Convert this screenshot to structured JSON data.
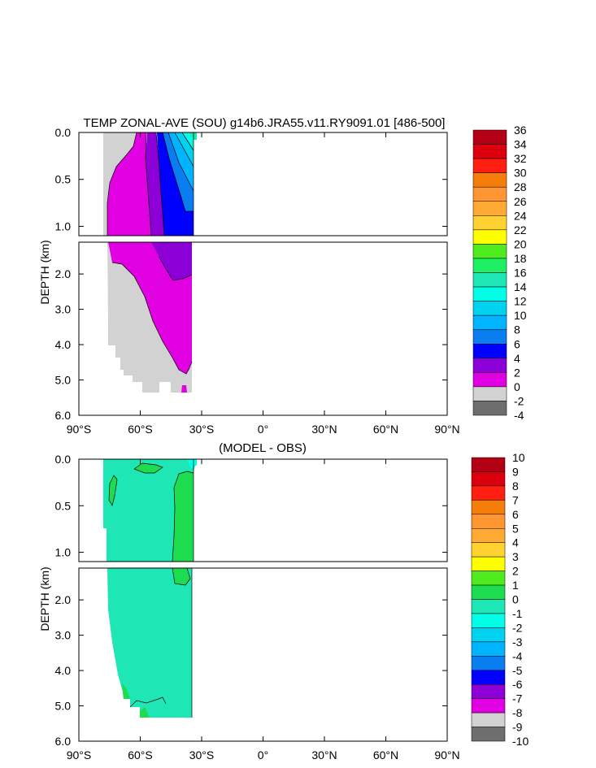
{
  "chart_data": [
    {
      "type": "heatmap",
      "title": "TEMP ZONAL-AVE (SOU) g14b6.JRA55.v11.RY9091.01 [486-500]",
      "ylabel": "DEPTH (km)",
      "x_ticks": [
        "90°S",
        "60°S",
        "30°S",
        "0°",
        "30°N",
        "60°N",
        "90°N"
      ],
      "y_ticks_upper": [
        "0.0",
        "0.5",
        "1.0"
      ],
      "y_ticks_lower": [
        "2.0",
        "3.0",
        "4.0",
        "5.0",
        "6.0"
      ],
      "xlim": [
        -90,
        90
      ],
      "ylim_upper": [
        0,
        1.1
      ],
      "ylim_lower": [
        1.1,
        6.0
      ],
      "colorbar_levels": [
        "36",
        "34",
        "32",
        "30",
        "28",
        "26",
        "24",
        "22",
        "20",
        "18",
        "16",
        "14",
        "12",
        "10",
        "8",
        "6",
        "4",
        "2",
        "0",
        "-2",
        "-4"
      ],
      "colorbar_colors": [
        "#b40014",
        "#dc000f",
        "#ff1e0f",
        "#f57d0a",
        "#ff9632",
        "#ffaa32",
        "#ffd232",
        "#ffff00",
        "#50eb1e",
        "#1ef064",
        "#1ee6b4",
        "#00ffe6",
        "#00d2f0",
        "#00b4ff",
        "#0a7df0",
        "#0000ff",
        "#8c00d7",
        "#e100e1",
        "#d2d2d2",
        "#6e6e6e"
      ]
    },
    {
      "type": "heatmap",
      "title": "(MODEL - OBS)",
      "ylabel": "DEPTH (km)",
      "x_ticks": [
        "90°S",
        "60°S",
        "30°S",
        "0°",
        "30°N",
        "60°N",
        "90°N"
      ],
      "y_ticks_upper": [
        "0.0",
        "0.5",
        "1.0"
      ],
      "y_ticks_lower": [
        "2.0",
        "3.0",
        "4.0",
        "5.0",
        "6.0"
      ],
      "xlim": [
        -90,
        90
      ],
      "ylim_upper": [
        0,
        1.1
      ],
      "ylim_lower": [
        1.1,
        6.0
      ],
      "colorbar_levels": [
        "10",
        "9",
        "8",
        "7",
        "6",
        "5",
        "4",
        "3",
        "2",
        "1",
        "0",
        "-1",
        "-2",
        "-3",
        "-4",
        "-5",
        "-6",
        "-7",
        "-8",
        "-9",
        "-10"
      ],
      "colorbar_colors": [
        "#b40014",
        "#dc000f",
        "#ff1e0f",
        "#f57d0a",
        "#ff9632",
        "#ffaa32",
        "#ffd232",
        "#ffff00",
        "#50eb1e",
        "#1edc50",
        "#1ee6b4",
        "#00ffe6",
        "#00d2f0",
        "#00b4ff",
        "#0a7df0",
        "#0000ff",
        "#8c00d7",
        "#e100e1",
        "#d2d2d2",
        "#6e6e6e"
      ]
    }
  ]
}
